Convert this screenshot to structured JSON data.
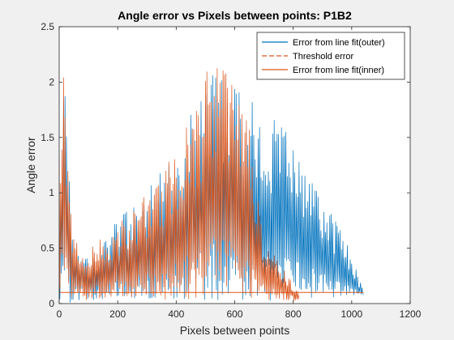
{
  "chart_data": {
    "type": "line",
    "title": "Angle error vs Pixels between points: P1B2",
    "xlabel": "Pixels between points",
    "ylabel": "Angle error",
    "xlim": [
      0,
      1200
    ],
    "ylim": [
      0,
      2.5
    ],
    "xticks": [
      0,
      200,
      400,
      600,
      800,
      1000,
      1200
    ],
    "yticks": [
      0,
      0.5,
      1,
      1.5,
      2,
      2.5
    ],
    "xtick_labels": [
      "0",
      "200",
      "400",
      "600",
      "800",
      "1000",
      "1200"
    ],
    "ytick_labels": [
      "0",
      "0.5",
      "1",
      "1.5",
      "2",
      "2.5"
    ],
    "grid": false,
    "legend_position": "top-right",
    "series": [
      {
        "name": "Error from line fit(outer)",
        "color": "#0072BD",
        "style": "solid",
        "x_range": [
          0,
          1040
        ],
        "envelope_max": [
          [
            0,
            0.3
          ],
          [
            10,
            1.7
          ],
          [
            20,
            2.35
          ],
          [
            30,
            1.5
          ],
          [
            40,
            0.8
          ],
          [
            60,
            0.55
          ],
          [
            100,
            0.42
          ],
          [
            150,
            0.6
          ],
          [
            200,
            0.75
          ],
          [
            250,
            0.9
          ],
          [
            300,
            1.05
          ],
          [
            350,
            1.2
          ],
          [
            400,
            1.45
          ],
          [
            450,
            1.75
          ],
          [
            500,
            2.05
          ],
          [
            530,
            2.3
          ],
          [
            560,
            2.1
          ],
          [
            600,
            1.95
          ],
          [
            650,
            1.85
          ],
          [
            700,
            1.75
          ],
          [
            750,
            1.65
          ],
          [
            800,
            1.5
          ],
          [
            850,
            1.25
          ],
          [
            900,
            1.0
          ],
          [
            950,
            0.75
          ],
          [
            1000,
            0.45
          ],
          [
            1040,
            0.12
          ]
        ],
        "envelope_min": [
          [
            0,
            0.0
          ],
          [
            200,
            0.05
          ],
          [
            400,
            0.02
          ],
          [
            600,
            0.03
          ],
          [
            800,
            0.02
          ],
          [
            1040,
            0.08
          ]
        ]
      },
      {
        "name": "Threshold error",
        "color": "#D95319",
        "style": "dashed",
        "x": [
          0,
          1040
        ],
        "y": [
          0.1,
          0.1
        ]
      },
      {
        "name": "Error from line fit(inner)",
        "color": "#D95319",
        "style": "solid",
        "x_range": [
          0,
          820
        ],
        "envelope_max": [
          [
            0,
            1.5
          ],
          [
            10,
            2.3
          ],
          [
            20,
            2.1
          ],
          [
            30,
            1.3
          ],
          [
            40,
            0.9
          ],
          [
            50,
            0.75
          ],
          [
            80,
            0.55
          ],
          [
            100,
            0.5
          ],
          [
            150,
            0.6
          ],
          [
            200,
            0.72
          ],
          [
            250,
            0.85
          ],
          [
            300,
            1.0
          ],
          [
            350,
            1.15
          ],
          [
            400,
            1.45
          ],
          [
            450,
            1.75
          ],
          [
            480,
            1.95
          ],
          [
            500,
            2.05
          ],
          [
            520,
            2.3
          ],
          [
            550,
            2.25
          ],
          [
            580,
            2.2
          ],
          [
            600,
            2.05
          ],
          [
            620,
            1.85
          ],
          [
            650,
            1.6
          ],
          [
            670,
            1.2
          ],
          [
            700,
            0.6
          ],
          [
            750,
            0.4
          ],
          [
            800,
            0.2
          ],
          [
            820,
            0.08
          ]
        ],
        "envelope_min": [
          [
            0,
            0.0
          ],
          [
            200,
            0.05
          ],
          [
            400,
            0.02
          ],
          [
            600,
            0.05
          ],
          [
            820,
            0.02
          ]
        ]
      }
    ]
  }
}
